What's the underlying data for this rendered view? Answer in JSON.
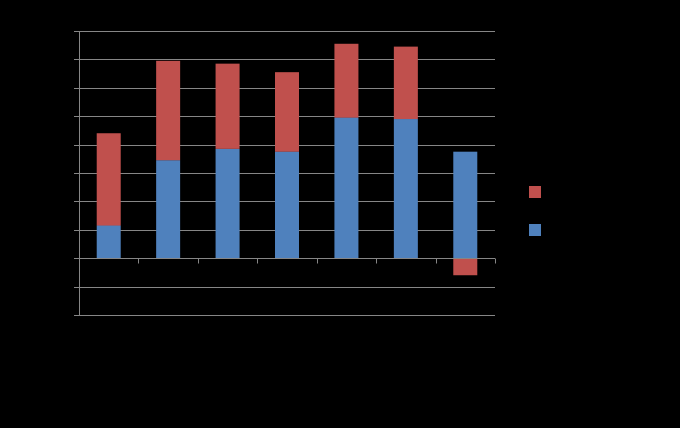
{
  "chart_data": {
    "type": "bar",
    "stacked": true,
    "categories": [
      "",
      "",
      "",
      "",
      "",
      "",
      ""
    ],
    "series": [
      {
        "values": [
          1.15,
          3.45,
          3.85,
          3.75,
          4.95,
          4.9,
          3.75
        ],
        "color": "#4F81BD"
      },
      {
        "values": [
          3.25,
          3.5,
          3.0,
          2.8,
          2.6,
          2.55,
          -0.6
        ],
        "color": "#C0504D"
      }
    ],
    "ylim": [
      -2,
      8
    ],
    "y_gridline_step": 1,
    "grid": true,
    "legend": "right",
    "title": "",
    "xlabel": "",
    "ylabel": ""
  }
}
